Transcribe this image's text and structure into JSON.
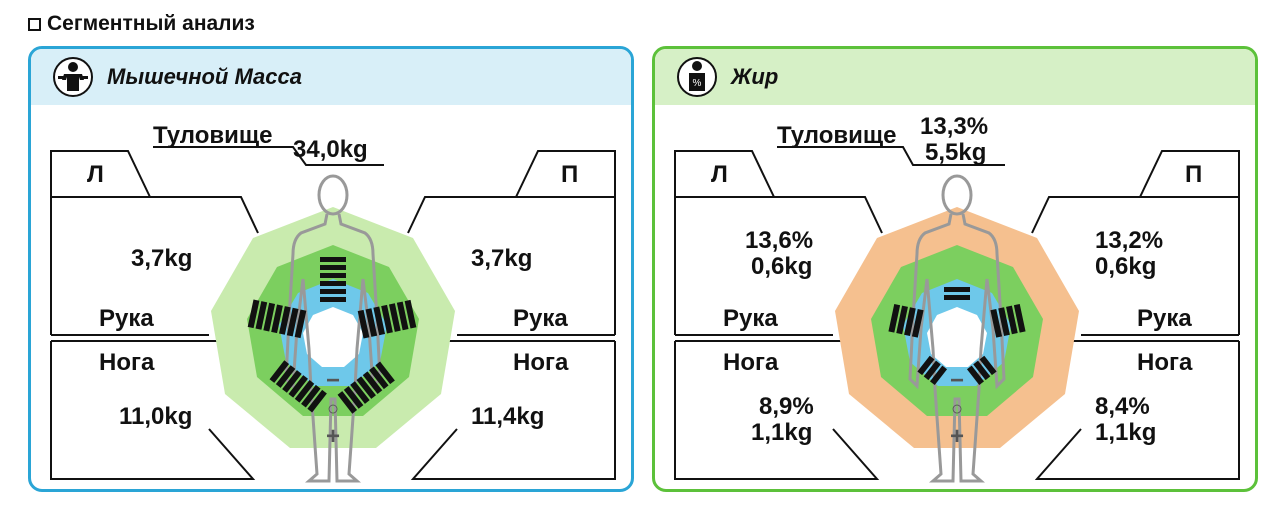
{
  "section_title": "Сегментный анализ",
  "colors": {
    "muscle_border": "#2aa5d6",
    "muscle_header_bg": "#d8eff8",
    "fat_border": "#5cc13a",
    "fat_header_bg": "#d6f0c6",
    "ring_blue": "#6ec8ea",
    "ring_green": "#7ccf5f",
    "ring_light_green": "#c9ebae",
    "ring_orange": "#f5c08f"
  },
  "muscle": {
    "title": "Мышечной Масса",
    "icon": "muscle-man-icon",
    "trunk_label": "Туловище",
    "trunk_value": "34,0kg",
    "left_label": "Л",
    "right_label": "П",
    "left_arm_value": "3,7kg",
    "right_arm_value": "3,7kg",
    "left_arm_label": "Рука",
    "right_arm_label": "Рука",
    "left_leg_label": "Нога",
    "right_leg_label": "Нога",
    "left_leg_value": "11,0kg",
    "right_leg_value": "11,4kg",
    "scale_minus": "−",
    "scale_normal": "○",
    "scale_plus": "+"
  },
  "fat": {
    "title": "Жир",
    "icon": "body-fat-percent-icon",
    "icon_text": "%",
    "trunk_label": "Туловище",
    "trunk_percent": "13,3%",
    "trunk_value": "5,5kg",
    "left_label": "Л",
    "right_label": "П",
    "left_arm_percent": "13,6%",
    "left_arm_value": "0,6kg",
    "right_arm_percent": "13,2%",
    "right_arm_value": "0,6kg",
    "left_arm_label": "Рука",
    "right_arm_label": "Рука",
    "left_leg_label": "Нога",
    "right_leg_label": "Нога",
    "left_leg_percent": "8,9%",
    "left_leg_value": "1,1kg",
    "right_leg_percent": "8,4%",
    "right_leg_value": "1,1kg",
    "scale_minus": "−",
    "scale_normal": "○",
    "scale_plus": "+"
  }
}
